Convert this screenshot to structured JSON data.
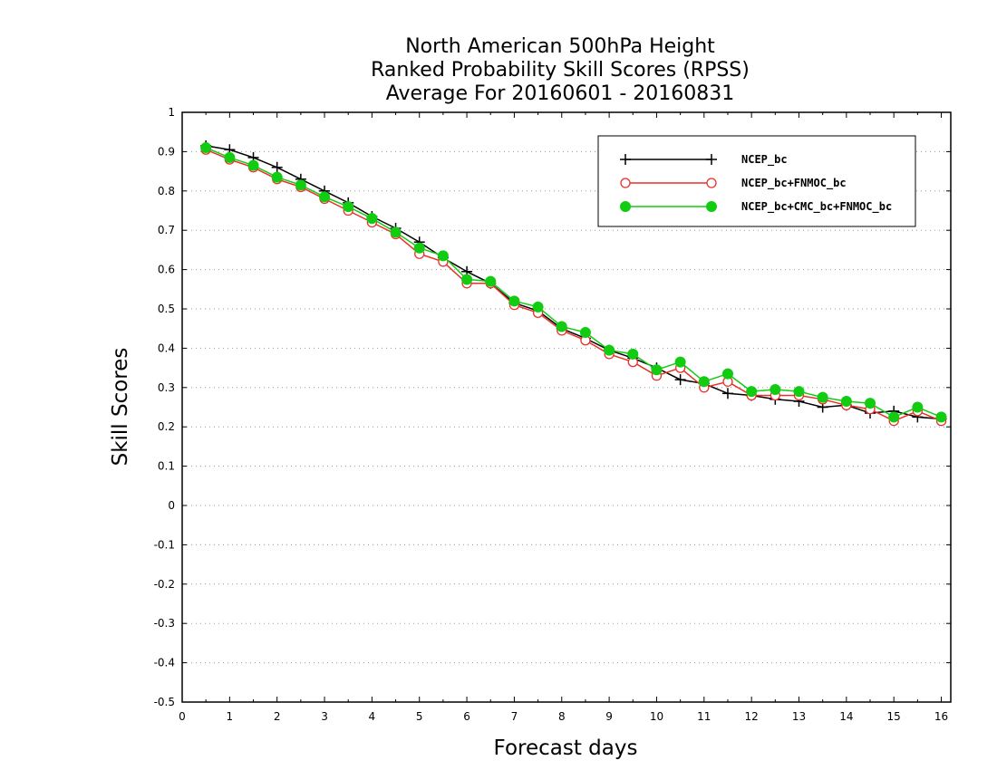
{
  "chart_data": {
    "type": "line",
    "title": [
      "North American 500hPa Height",
      "Ranked Probability Skill Scores (RPSS)",
      "Average For 20160601 - 20160831"
    ],
    "xlabel": "Forecast days",
    "ylabel": "Skill Scores",
    "xlim": [
      0,
      16.2
    ],
    "ylim": [
      -0.5,
      1
    ],
    "xticks": [
      0,
      1,
      2,
      3,
      4,
      5,
      6,
      7,
      8,
      9,
      10,
      11,
      12,
      13,
      14,
      15,
      16
    ],
    "yticks": [
      -0.5,
      -0.4,
      -0.3,
      -0.2,
      -0.1,
      0,
      0.1,
      0.2,
      0.3,
      0.4,
      0.5,
      0.6,
      0.7,
      0.8,
      0.9,
      1
    ],
    "ytick_labels": [
      "-0.5",
      "-0.4",
      "-0.3",
      "-0.2",
      "-0.1",
      "0",
      "0.1",
      "0.2",
      "0.3",
      "0.4",
      "0.5",
      "0.6",
      "0.7",
      "0.8",
      "0.9",
      "1"
    ],
    "grid": "horizontal dotted",
    "legend_position": "top-right",
    "x": [
      0.5,
      1,
      1.5,
      2,
      2.5,
      3,
      3.5,
      4,
      4.5,
      5,
      5.5,
      6,
      6.5,
      7,
      7.5,
      8,
      8.5,
      9,
      9.5,
      10,
      10.5,
      11,
      11.5,
      12,
      12.5,
      13,
      13.5,
      14,
      14.5,
      15,
      15.5,
      16
    ],
    "series": [
      {
        "name": "NCEP_bc",
        "color": "#000000",
        "marker": "plus",
        "values": [
          0.915,
          0.905,
          0.885,
          0.86,
          0.83,
          0.8,
          0.77,
          0.735,
          0.705,
          0.67,
          0.63,
          0.595,
          0.565,
          0.515,
          0.495,
          0.45,
          0.425,
          0.395,
          0.375,
          0.35,
          0.32,
          0.31,
          0.285,
          0.28,
          0.27,
          0.265,
          0.25,
          0.255,
          0.235,
          0.24,
          0.225,
          0.22
        ]
      },
      {
        "name": "NCEP_bc+FNMOC_bc",
        "color": "#e8302a",
        "marker": "open-circle",
        "values": [
          0.905,
          0.88,
          0.86,
          0.83,
          0.81,
          0.78,
          0.75,
          0.72,
          0.69,
          0.64,
          0.62,
          0.565,
          0.565,
          0.51,
          0.49,
          0.445,
          0.42,
          0.385,
          0.365,
          0.33,
          0.35,
          0.3,
          0.315,
          0.28,
          0.28,
          0.28,
          0.27,
          0.255,
          0.245,
          0.215,
          0.24,
          0.215
        ]
      },
      {
        "name": "NCEP_bc+CMC_bc+FNMOC_bc",
        "color": "#11cc11",
        "marker": "filled-circle",
        "values": [
          0.91,
          0.885,
          0.865,
          0.835,
          0.815,
          0.785,
          0.76,
          0.73,
          0.695,
          0.655,
          0.635,
          0.575,
          0.57,
          0.52,
          0.505,
          0.455,
          0.44,
          0.395,
          0.385,
          0.345,
          0.365,
          0.315,
          0.335,
          0.29,
          0.295,
          0.29,
          0.275,
          0.265,
          0.26,
          0.225,
          0.25,
          0.225
        ]
      }
    ]
  }
}
